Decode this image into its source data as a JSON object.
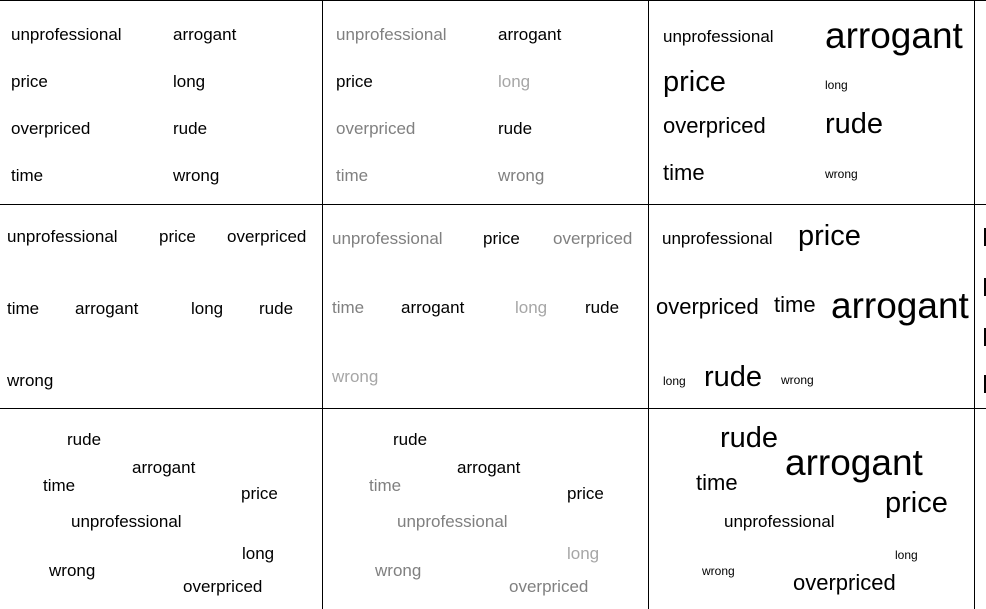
{
  "colors": {
    "dark": "#000000",
    "muted": "#808080",
    "light": "#a6a6a6",
    "background": "#ffffff",
    "grid": "#000000"
  },
  "panels": [
    {
      "words": [
        {
          "text": "unprofessional",
          "tone": "dark",
          "weight": 2
        },
        {
          "text": "arrogant",
          "tone": "dark",
          "weight": 2
        },
        {
          "text": "price",
          "tone": "dark",
          "weight": 2
        },
        {
          "text": "long",
          "tone": "dark",
          "weight": 2
        },
        {
          "text": "overpriced",
          "tone": "dark",
          "weight": 2
        },
        {
          "text": "rude",
          "tone": "dark",
          "weight": 2
        },
        {
          "text": "time",
          "tone": "dark",
          "weight": 2
        },
        {
          "text": "wrong",
          "tone": "dark",
          "weight": 2
        }
      ]
    },
    {
      "words": [
        {
          "text": "unprofessional",
          "tone": "muted",
          "weight": 2
        },
        {
          "text": "arrogant",
          "tone": "dark",
          "weight": 2
        },
        {
          "text": "price",
          "tone": "dark",
          "weight": 2
        },
        {
          "text": "long",
          "tone": "light",
          "weight": 2
        },
        {
          "text": "overpriced",
          "tone": "muted",
          "weight": 2
        },
        {
          "text": "rude",
          "tone": "dark",
          "weight": 2
        },
        {
          "text": "time",
          "tone": "muted",
          "weight": 2
        },
        {
          "text": "wrong",
          "tone": "muted",
          "weight": 2
        }
      ]
    },
    {
      "words": [
        {
          "text": "unprofessional",
          "tone": "dark",
          "weight": 2
        },
        {
          "text": "arrogant",
          "tone": "dark",
          "weight": 5
        },
        {
          "text": "price",
          "tone": "dark",
          "weight": 4
        },
        {
          "text": "long",
          "tone": "dark",
          "weight": 1
        },
        {
          "text": "overpriced",
          "tone": "dark",
          "weight": 3
        },
        {
          "text": "rude",
          "tone": "dark",
          "weight": 4
        },
        {
          "text": "time",
          "tone": "dark",
          "weight": 3
        },
        {
          "text": "wrong",
          "tone": "dark",
          "weight": 1
        }
      ]
    },
    {
      "words": [
        {
          "text": "unprofessional",
          "tone": "dark",
          "weight": 2
        },
        {
          "text": "price",
          "tone": "dark",
          "weight": 2
        },
        {
          "text": "overpriced",
          "tone": "dark",
          "weight": 2
        },
        {
          "text": "time",
          "tone": "dark",
          "weight": 2
        },
        {
          "text": "arrogant",
          "tone": "dark",
          "weight": 2
        },
        {
          "text": "long",
          "tone": "dark",
          "weight": 2
        },
        {
          "text": "rude",
          "tone": "dark",
          "weight": 2
        },
        {
          "text": "wrong",
          "tone": "dark",
          "weight": 2
        }
      ]
    },
    {
      "words": [
        {
          "text": "unprofessional",
          "tone": "muted",
          "weight": 2
        },
        {
          "text": "price",
          "tone": "dark",
          "weight": 2
        },
        {
          "text": "overpriced",
          "tone": "muted",
          "weight": 2
        },
        {
          "text": "time",
          "tone": "muted",
          "weight": 2
        },
        {
          "text": "arrogant",
          "tone": "dark",
          "weight": 2
        },
        {
          "text": "long",
          "tone": "light",
          "weight": 2
        },
        {
          "text": "rude",
          "tone": "dark",
          "weight": 2
        },
        {
          "text": "wrong",
          "tone": "light",
          "weight": 2
        }
      ]
    },
    {
      "words": [
        {
          "text": "unprofessional",
          "tone": "dark",
          "weight": 2
        },
        {
          "text": "price",
          "tone": "dark",
          "weight": 4
        },
        {
          "text": "overpriced",
          "tone": "dark",
          "weight": 3
        },
        {
          "text": "time",
          "tone": "dark",
          "weight": 3
        },
        {
          "text": "arrogant",
          "tone": "dark",
          "weight": 5
        },
        {
          "text": "long",
          "tone": "dark",
          "weight": 1
        },
        {
          "text": "rude",
          "tone": "dark",
          "weight": 4
        },
        {
          "text": "wrong",
          "tone": "dark",
          "weight": 1
        }
      ]
    },
    {
      "words": [
        {
          "text": "rude",
          "tone": "dark",
          "weight": 2
        },
        {
          "text": "arrogant",
          "tone": "dark",
          "weight": 2
        },
        {
          "text": "time",
          "tone": "dark",
          "weight": 2
        },
        {
          "text": "price",
          "tone": "dark",
          "weight": 2
        },
        {
          "text": "unprofessional",
          "tone": "dark",
          "weight": 2
        },
        {
          "text": "long",
          "tone": "dark",
          "weight": 2
        },
        {
          "text": "wrong",
          "tone": "dark",
          "weight": 2
        },
        {
          "text": "overpriced",
          "tone": "dark",
          "weight": 2
        }
      ]
    },
    {
      "words": [
        {
          "text": "rude",
          "tone": "dark",
          "weight": 2
        },
        {
          "text": "arrogant",
          "tone": "dark",
          "weight": 2
        },
        {
          "text": "time",
          "tone": "muted",
          "weight": 2
        },
        {
          "text": "price",
          "tone": "dark",
          "weight": 2
        },
        {
          "text": "unprofessional",
          "tone": "muted",
          "weight": 2
        },
        {
          "text": "long",
          "tone": "light",
          "weight": 2
        },
        {
          "text": "wrong",
          "tone": "muted",
          "weight": 2
        },
        {
          "text": "overpriced",
          "tone": "muted",
          "weight": 2
        }
      ]
    },
    {
      "words": [
        {
          "text": "rude",
          "tone": "dark",
          "weight": 4
        },
        {
          "text": "arrogant",
          "tone": "dark",
          "weight": 5
        },
        {
          "text": "time",
          "tone": "dark",
          "weight": 3
        },
        {
          "text": "price",
          "tone": "dark",
          "weight": 4
        },
        {
          "text": "unprofessional",
          "tone": "dark",
          "weight": 2
        },
        {
          "text": "long",
          "tone": "dark",
          "weight": 1
        },
        {
          "text": "wrong",
          "tone": "dark",
          "weight": 1
        },
        {
          "text": "overpriced",
          "tone": "dark",
          "weight": 3
        }
      ]
    }
  ]
}
